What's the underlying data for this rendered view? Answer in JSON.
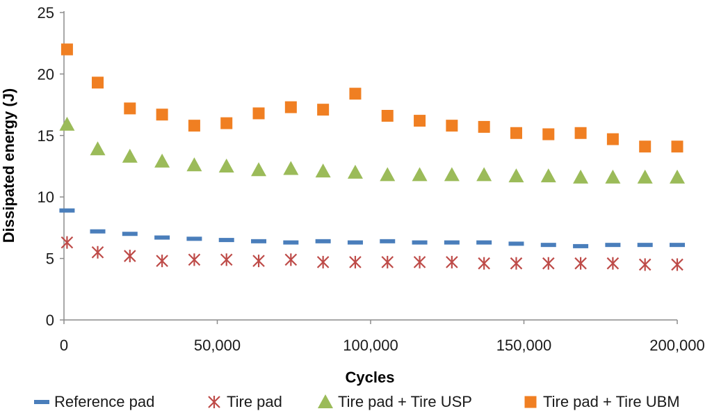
{
  "chart_data": {
    "type": "scatter",
    "title": "",
    "xlabel": "Cycles",
    "ylabel": "Dissipated energy (J)",
    "xlim": [
      0,
      200000
    ],
    "ylim": [
      0,
      25
    ],
    "x_ticks": [
      0,
      50000,
      100000,
      150000,
      200000
    ],
    "x_tick_labels": [
      "0",
      "50,000",
      "100,000",
      "150,000",
      "200,000"
    ],
    "y_ticks": [
      0,
      5,
      10,
      15,
      20,
      25
    ],
    "y_tick_labels": [
      "0",
      "5",
      "10",
      "15",
      "20",
      "25"
    ],
    "grid": false,
    "legend_position": "bottom",
    "x": [
      1000,
      11000,
      21500,
      32000,
      42500,
      53000,
      63500,
      74000,
      84500,
      95000,
      105500,
      116000,
      126500,
      137000,
      147500,
      158000,
      168500,
      179000,
      189500,
      200000
    ],
    "series": [
      {
        "name": "Reference pad",
        "marker": "dash",
        "color": "#4a7ebb",
        "values": [
          8.9,
          7.2,
          7.0,
          6.7,
          6.6,
          6.5,
          6.4,
          6.3,
          6.4,
          6.3,
          6.4,
          6.3,
          6.3,
          6.3,
          6.2,
          6.1,
          6.0,
          6.1,
          6.1,
          6.1
        ]
      },
      {
        "name": "Tire pad",
        "marker": "star",
        "color": "#be4b48",
        "values": [
          6.3,
          5.5,
          5.2,
          4.8,
          4.9,
          4.9,
          4.8,
          4.9,
          4.7,
          4.7,
          4.7,
          4.7,
          4.7,
          4.6,
          4.6,
          4.6,
          4.6,
          4.6,
          4.5,
          4.5
        ]
      },
      {
        "name": "Tire pad + Tire USP",
        "marker": "triangle",
        "color": "#9bbb59",
        "values": [
          15.9,
          13.9,
          13.3,
          12.9,
          12.6,
          12.5,
          12.2,
          12.3,
          12.1,
          12.0,
          11.8,
          11.8,
          11.8,
          11.8,
          11.7,
          11.7,
          11.6,
          11.6,
          11.6,
          11.6
        ]
      },
      {
        "name": "Tire pad + Tire UBM",
        "marker": "square",
        "color": "#f07f22",
        "values": [
          22.0,
          19.3,
          17.2,
          16.7,
          15.8,
          16.0,
          16.8,
          17.3,
          17.1,
          18.4,
          16.6,
          16.2,
          15.8,
          15.7,
          15.2,
          15.1,
          15.2,
          14.7,
          14.1,
          14.1
        ]
      }
    ]
  }
}
